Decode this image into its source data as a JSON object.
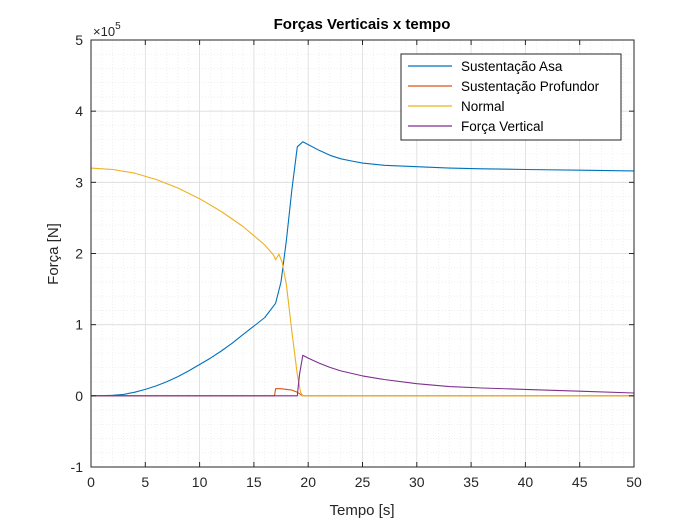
{
  "chart_data": {
    "type": "line",
    "title": "Forças Verticais x tempo",
    "xlabel": "Tempo [s]",
    "ylabel": "Força [N]",
    "y_exponent_label": "×10",
    "y_exponent_power": "5",
    "xlim": [
      0,
      50
    ],
    "ylim": [
      -1,
      5
    ],
    "y_scale": 100000,
    "xticks": [
      0,
      5,
      10,
      15,
      20,
      25,
      30,
      35,
      40,
      45,
      50
    ],
    "yticks": [
      -1,
      0,
      1,
      2,
      3,
      4,
      5
    ],
    "grid": "on (major and minor)",
    "legend_position": "top-right",
    "series": [
      {
        "name": "Sustentação Asa",
        "color": "#0072bd",
        "x": [
          0,
          1,
          2,
          3,
          4,
          5,
          6,
          7,
          8,
          9,
          10,
          11,
          12,
          13,
          14,
          15,
          16,
          17,
          17.5,
          18,
          18.5,
          19,
          19.5,
          20,
          21,
          22,
          23,
          24,
          25,
          27,
          30,
          33,
          36,
          40,
          45,
          50
        ],
        "y": [
          0,
          0.002,
          0.008,
          0.02,
          0.05,
          0.09,
          0.14,
          0.2,
          0.27,
          0.35,
          0.44,
          0.53,
          0.63,
          0.74,
          0.86,
          0.98,
          1.1,
          1.3,
          1.6,
          2.2,
          2.9,
          3.5,
          3.57,
          3.53,
          3.45,
          3.38,
          3.33,
          3.3,
          3.27,
          3.24,
          3.22,
          3.2,
          3.19,
          3.18,
          3.17,
          3.16
        ]
      },
      {
        "name": "Sustentação Profundor",
        "color": "#d95319",
        "x": [
          0,
          16.9,
          17.0,
          17.5,
          18.0,
          18.5,
          19.0,
          19.5,
          20,
          50
        ],
        "y": [
          0,
          0,
          0.1,
          0.1,
          0.09,
          0.08,
          0.05,
          0,
          0,
          0
        ]
      },
      {
        "name": "Normal",
        "color": "#edb120",
        "x": [
          0,
          2,
          4,
          6,
          8,
          10,
          12,
          14,
          15,
          16,
          16.8,
          17.0,
          17.3,
          17.6,
          18,
          18.5,
          19,
          19.3,
          19.5,
          20,
          25,
          30,
          40,
          50
        ],
        "y": [
          3.2,
          3.18,
          3.13,
          3.04,
          2.92,
          2.77,
          2.59,
          2.38,
          2.25,
          2.12,
          1.98,
          1.91,
          1.99,
          1.88,
          1.55,
          0.9,
          0.3,
          0.05,
          0,
          0,
          0,
          0,
          0,
          0
        ]
      },
      {
        "name": "Força Vertical",
        "color": "#7e2f8e",
        "x": [
          0,
          19.0,
          19.2,
          19.5,
          20,
          21,
          22,
          23,
          25,
          27,
          30,
          33,
          36,
          40,
          45,
          50
        ],
        "y": [
          0,
          0,
          0.3,
          0.57,
          0.53,
          0.46,
          0.4,
          0.35,
          0.28,
          0.23,
          0.17,
          0.13,
          0.11,
          0.09,
          0.065,
          0.04
        ]
      }
    ]
  }
}
